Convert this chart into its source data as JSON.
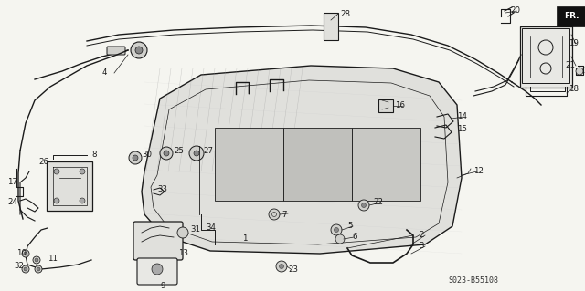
{
  "bg_color": "#f5f5f0",
  "diagram_code": "S023-B55108",
  "fr_label": "FR.",
  "line_color": "#1a1a1a",
  "text_color": "#1a1a1a",
  "fig_w": 6.4,
  "fig_h": 3.19,
  "dpi": 100
}
